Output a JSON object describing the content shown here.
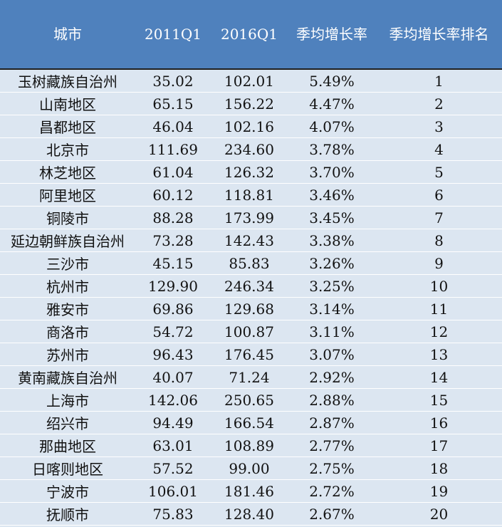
{
  "table": {
    "header": [
      "城市",
      "2011Q1",
      "2016Q1",
      "季均增长率",
      "季均增长率排名"
    ],
    "rows": [
      [
        "玉树藏族自治州",
        "35.02",
        "102.01",
        "5.49%",
        1
      ],
      [
        "山南地区",
        "65.15",
        "156.22",
        "4.47%",
        2
      ],
      [
        "昌都地区",
        "46.04",
        "102.16",
        "4.07%",
        3
      ],
      [
        "北京市",
        "111.69",
        "234.60",
        "3.78%",
        4
      ],
      [
        "林芝地区",
        "61.04",
        "126.32",
        "3.70%",
        5
      ],
      [
        "阿里地区",
        "60.12",
        "118.81",
        "3.46%",
        6
      ],
      [
        "铜陵市",
        "88.28",
        "173.99",
        "3.45%",
        7
      ],
      [
        "延边朝鲜族自治州",
        "73.28",
        "142.43",
        "3.38%",
        8
      ],
      [
        "三沙市",
        "45.15",
        "85.83",
        "3.26%",
        9
      ],
      [
        "杭州市",
        "129.90",
        "246.34",
        "3.25%",
        10
      ],
      [
        "雅安市",
        "69.86",
        "129.68",
        "3.14%",
        11
      ],
      [
        "商洛市",
        "54.72",
        "100.87",
        "3.11%",
        12
      ],
      [
        "苏州市",
        "96.43",
        "176.45",
        "3.07%",
        13
      ],
      [
        "黄南藏族自治州",
        "40.07",
        "71.24",
        "2.92%",
        14
      ],
      [
        "上海市",
        "142.06",
        "250.65",
        "2.88%",
        15
      ],
      [
        "绍兴市",
        "94.49",
        "166.54",
        "2.87%",
        16
      ],
      [
        "那曲地区",
        "63.01",
        "108.89",
        "2.77%",
        17
      ],
      [
        "日喀则地区",
        "57.52",
        "99.00",
        "2.75%",
        18
      ],
      [
        "宁波市",
        "106.01",
        "181.46",
        "2.72%",
        19
      ],
      [
        "抚顺市",
        "75.83",
        "128.40",
        "2.67%",
        20
      ]
    ]
  }
}
